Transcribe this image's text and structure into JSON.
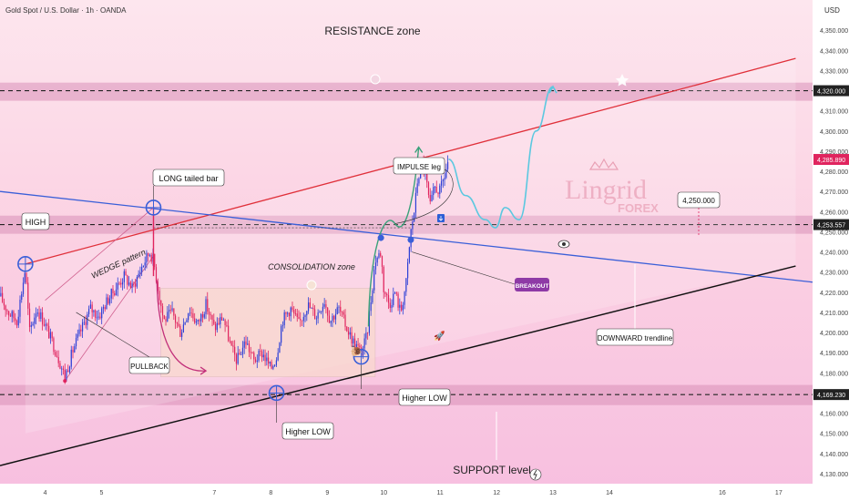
{
  "header": {
    "symbol_title": "Gold Spot / U.S. Dollar · 1h · OANDA",
    "currency": "USD"
  },
  "brand": {
    "logo_text": "Lingrid",
    "logo_sub": "FOREX"
  },
  "colors": {
    "bull": "#2c3fd6",
    "bear": "#e0245e",
    "resistance_line": "#e0303a",
    "downtrend_line": "#3a5fd8",
    "support_line": "#111111",
    "zone": "#d88fb8",
    "price_tag": "#e0245e",
    "projection": "#5bc8e0",
    "impulse_arrow": "#3aa17a",
    "pullback_arrow": "#c2307a",
    "breakout_tag": "#8e3aa6"
  },
  "chart_data": {
    "type": "candlestick",
    "ylim": [
      4125,
      4365
    ],
    "xlim": [
      3.2,
      17.6
    ],
    "y_ticks": [
      4130,
      4140,
      4150,
      4160,
      4170,
      4180,
      4190,
      4200,
      4210,
      4220,
      4230,
      4240,
      4250,
      4260,
      4270,
      4280,
      4290,
      4300,
      4310,
      4320,
      4330,
      4340,
      4350
    ],
    "y_tick_labels": [
      "4,130.000",
      "4,140.000",
      "4,150.000",
      "4,160.000",
      "4,170.000",
      "4,180.000",
      "4,190.000",
      "4,200.000",
      "4,210.000",
      "4,220.000",
      "4,230.000",
      "4,240.000",
      "4,250.000",
      "4,260.000",
      "4,270.000",
      "4,280.000",
      "4,290.000",
      "4,300.000",
      "4,310.000",
      "4,320.000",
      "4,330.000",
      "4,340.000",
      "4,350.000"
    ],
    "x_ticks": [
      4,
      5,
      7,
      8,
      9,
      10,
      11,
      12,
      13,
      14,
      16,
      17
    ],
    "x_tick_labels": [
      "4",
      "5",
      "7",
      "8",
      "9",
      "10",
      "11",
      "12",
      "13",
      "14",
      "16",
      "17"
    ],
    "price_path": [
      [
        3.2,
        4218
      ],
      [
        3.35,
        4210
      ],
      [
        3.5,
        4206
      ],
      [
        3.65,
        4232
      ],
      [
        3.72,
        4200
      ],
      [
        3.85,
        4212
      ],
      [
        4.0,
        4204
      ],
      [
        4.2,
        4190
      ],
      [
        4.35,
        4178
      ],
      [
        4.5,
        4192
      ],
      [
        4.65,
        4202
      ],
      [
        4.8,
        4212
      ],
      [
        4.95,
        4208
      ],
      [
        5.1,
        4216
      ],
      [
        5.25,
        4222
      ],
      [
        5.4,
        4228
      ],
      [
        5.55,
        4222
      ],
      [
        5.7,
        4232
      ],
      [
        5.85,
        4240
      ],
      [
        5.92,
        4236
      ],
      [
        6.0,
        4222
      ],
      [
        6.1,
        4206
      ],
      [
        6.25,
        4210
      ],
      [
        6.4,
        4200
      ],
      [
        6.55,
        4212
      ],
      [
        6.7,
        4204
      ],
      [
        6.85,
        4214
      ],
      [
        7.0,
        4202
      ],
      [
        7.15,
        4208
      ],
      [
        7.3,
        4192
      ],
      [
        7.4,
        4186
      ],
      [
        7.55,
        4196
      ],
      [
        7.7,
        4186
      ],
      [
        7.85,
        4190
      ],
      [
        8.0,
        4182
      ],
      [
        8.1,
        4188
      ],
      [
        8.2,
        4206
      ],
      [
        8.35,
        4212
      ],
      [
        8.5,
        4204
      ],
      [
        8.65,
        4214
      ],
      [
        8.8,
        4208
      ],
      [
        8.95,
        4216
      ],
      [
        9.05,
        4206
      ],
      [
        9.2,
        4212
      ],
      [
        9.35,
        4202
      ],
      [
        9.45,
        4196
      ],
      [
        9.6,
        4190
      ],
      [
        9.7,
        4198
      ],
      [
        9.85,
        4236
      ],
      [
        9.95,
        4240
      ],
      [
        10.0,
        4222
      ],
      [
        10.1,
        4214
      ],
      [
        10.2,
        4220
      ],
      [
        10.3,
        4210
      ],
      [
        10.4,
        4225
      ],
      [
        10.48,
        4250
      ],
      [
        10.55,
        4262
      ],
      [
        10.6,
        4276
      ],
      [
        10.68,
        4284
      ],
      [
        10.75,
        4276
      ],
      [
        10.82,
        4262
      ],
      [
        10.9,
        4272
      ],
      [
        11.0,
        4270
      ],
      [
        11.08,
        4278
      ],
      [
        11.15,
        4286
      ]
    ],
    "projection_path": [
      [
        11.15,
        4286
      ],
      [
        11.45,
        4268
      ],
      [
        11.8,
        4256
      ],
      [
        11.98,
        4252
      ],
      [
        12.15,
        4262
      ],
      [
        12.4,
        4256
      ],
      [
        12.7,
        4300
      ],
      [
        13.0,
        4322
      ]
    ],
    "candle_count": 280,
    "candle_seed": 17,
    "levels": [
      {
        "name": "resistance",
        "value": 4320.0,
        "label": "4,320.000",
        "band": [
          4315,
          4324
        ]
      },
      {
        "name": "mid",
        "value": 4253.557,
        "label": "4,253.557",
        "band": [
          4249,
          4258
        ]
      },
      {
        "name": "support",
        "value": 4169.23,
        "label": "4,169.230",
        "band": [
          4164,
          4174
        ]
      },
      {
        "name": "target",
        "value": 4250.0,
        "label": "4,250.000"
      },
      {
        "name": "last_price",
        "value": 4285.89,
        "label": "4,285.890"
      }
    ],
    "trendlines": {
      "resistance": [
        [
          3.65,
          4234
        ],
        [
          17.3,
          4336
        ]
      ],
      "downward": [
        [
          3.2,
          4270
        ],
        [
          17.6,
          4225
        ]
      ],
      "support": [
        [
          3.2,
          4134
        ],
        [
          17.3,
          4233
        ]
      ]
    },
    "consolidation_box": {
      "x": [
        6.05,
        9.85
      ],
      "y": [
        4178,
        4222
      ]
    },
    "markers": [
      {
        "name": "high",
        "x": 3.65,
        "y": 4234
      },
      {
        "name": "long-tailed-bar",
        "x": 5.92,
        "y": 4262
      },
      {
        "name": "higher-low-1",
        "x": 8.1,
        "y": 4170
      },
      {
        "name": "higher-low-2",
        "x": 9.6,
        "y": 4188
      },
      {
        "name": "breakout-1",
        "x": 9.95,
        "y": 4247
      },
      {
        "name": "breakout-2",
        "x": 10.48,
        "y": 4246
      }
    ],
    "annotations": {
      "resistance_zone": "RESISTANCE zone",
      "support_level": "SUPPORT level",
      "high": "HIGH",
      "long_tailed_bar": "LONG tailed bar",
      "wedge_pattern": "WEDGE pattern",
      "pullback": "PULLBACK",
      "consolidation_zone": "CONSOLIDATION zone",
      "higher_low_1": "Higher LOW",
      "higher_low_2": "Higher LOW",
      "impulse_leg": "IMPULSE leg",
      "breakout": "BREAKOUT",
      "downward_trendline": "DOWNWARD trendline",
      "target_value": "4,250.000"
    }
  }
}
